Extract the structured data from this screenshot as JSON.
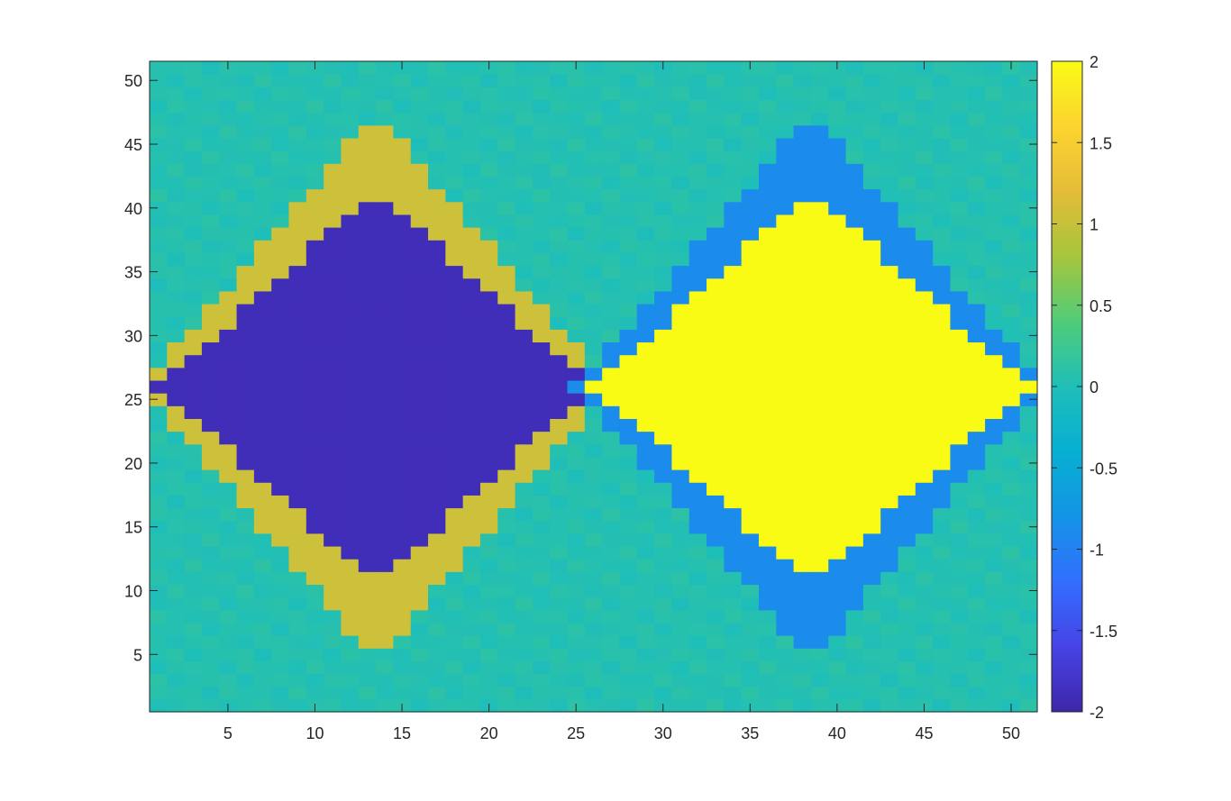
{
  "chart_data": {
    "type": "heatmap",
    "title": "",
    "xlabel": "",
    "ylabel": "",
    "grid_size": [
      51,
      51
    ],
    "xlim": [
      0.5,
      51.5
    ],
    "ylim": [
      0.5,
      51.5
    ],
    "clim": [
      -2,
      2
    ],
    "colormap": "parula",
    "x_ticks": [
      5,
      10,
      15,
      20,
      25,
      30,
      35,
      40,
      45,
      50
    ],
    "y_ticks": [
      5,
      10,
      15,
      20,
      25,
      30,
      35,
      40,
      45,
      50
    ],
    "x_tick_labels": [
      "5",
      "10",
      "15",
      "20",
      "25",
      "30",
      "35",
      "40",
      "45",
      "50"
    ],
    "y_tick_labels": [
      "5",
      "10",
      "15",
      "20",
      "25",
      "30",
      "35",
      "40",
      "45",
      "50"
    ],
    "colorbar": {
      "location": "right",
      "ticks": [
        2,
        1.5,
        1,
        0.5,
        0,
        -0.5,
        -1,
        -1.5,
        -2
      ],
      "tick_labels": [
        "2",
        "1.5",
        "1",
        "0.5",
        "0",
        "-0.5",
        "-1",
        "-1.5",
        "-2"
      ]
    },
    "regions": [
      {
        "name": "left diamond core",
        "center": [
          13.5,
          26
        ],
        "half_width": 12.5,
        "value": -1.9
      },
      {
        "name": "left diamond rim",
        "center": [
          13.5,
          26
        ],
        "value": 1.05
      },
      {
        "name": "right diamond core",
        "center": [
          38.5,
          26
        ],
        "half_width": 12.5,
        "value": 2.0
      },
      {
        "name": "right diamond rim",
        "center": [
          38.5,
          26
        ],
        "value": -0.9
      },
      {
        "name": "background",
        "value": 0.05
      }
    ]
  }
}
